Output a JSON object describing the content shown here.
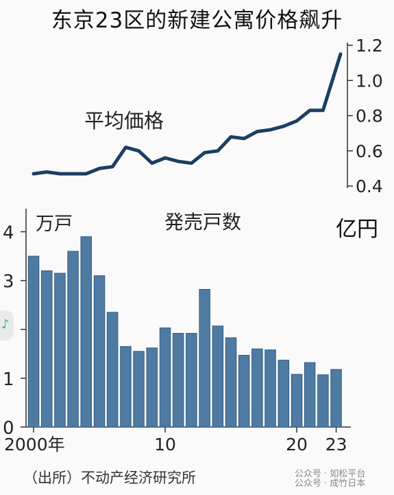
{
  "headline": "东京23区的新建公寓价格飙升",
  "source_note": "（出所）不动产经济研究所",
  "watermark": [
    "公众号 · 如松平台",
    "公众号 · 成竹日本"
  ],
  "side_badge_icon": "music-note-icon",
  "colors": {
    "line": "#1d3e63",
    "bar": "#4f7ba2",
    "bar_edge": "#2f5c84",
    "axis": "#333333"
  },
  "chart_data": [
    {
      "type": "line",
      "title": "平均価格",
      "unit_label": "亿円",
      "x": [
        2000,
        2001,
        2002,
        2003,
        2004,
        2005,
        2006,
        2007,
        2008,
        2009,
        2010,
        2011,
        2012,
        2013,
        2014,
        2015,
        2016,
        2017,
        2018,
        2019,
        2020,
        2021,
        2022,
        2023
      ],
      "y": [
        0.47,
        0.48,
        0.47,
        0.47,
        0.47,
        0.5,
        0.51,
        0.62,
        0.6,
        0.53,
        0.56,
        0.54,
        0.53,
        0.59,
        0.6,
        0.68,
        0.67,
        0.71,
        0.72,
        0.74,
        0.77,
        0.83,
        0.83,
        1.15
      ],
      "y_ticks": [
        "0.4",
        "0.6",
        "0.8",
        "1.0",
        "1.2"
      ],
      "ylim": [
        0.4,
        1.2
      ],
      "axis_side": "right"
    },
    {
      "type": "bar",
      "title": "発売戸数",
      "unit_label": "万戸",
      "x": [
        2000,
        2001,
        2002,
        2003,
        2004,
        2005,
        2006,
        2007,
        2008,
        2009,
        2010,
        2011,
        2012,
        2013,
        2014,
        2015,
        2016,
        2017,
        2018,
        2019,
        2020,
        2021,
        2022,
        2023
      ],
      "values": [
        3.5,
        3.2,
        3.15,
        3.6,
        3.9,
        3.1,
        2.35,
        1.65,
        1.55,
        1.62,
        2.03,
        1.92,
        1.92,
        2.82,
        2.07,
        1.83,
        1.47,
        1.6,
        1.58,
        1.37,
        1.08,
        1.32,
        1.07,
        1.18
      ],
      "y_ticks": [
        "0",
        "1",
        "2",
        "3",
        "4"
      ],
      "ylim": [
        0,
        4.5
      ],
      "x_tick_labels": [
        "2000年",
        "10",
        "20",
        "23"
      ],
      "x_tick_years": [
        2000,
        2010,
        2020,
        2023
      ]
    }
  ]
}
